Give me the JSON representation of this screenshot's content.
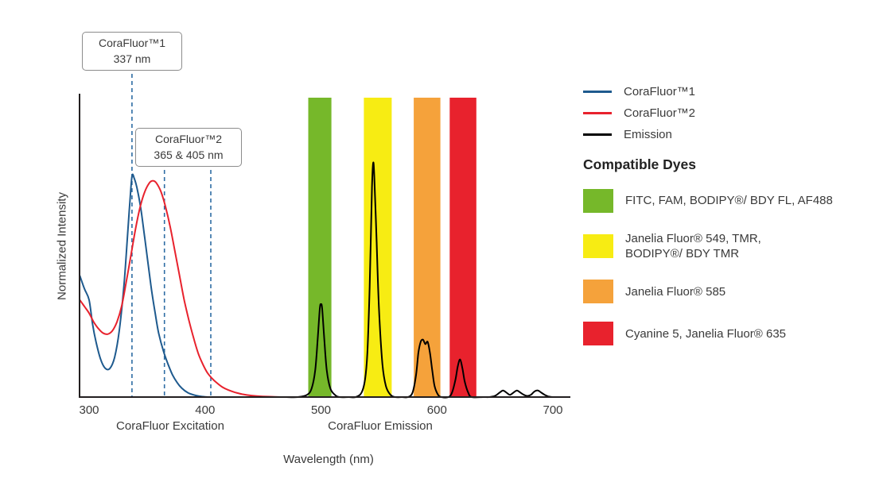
{
  "chart_data": {
    "type": "line",
    "xlabel": "Wavelength (nm)",
    "ylabel": "Normalized Intensity",
    "x_ticks": [
      300,
      400,
      500,
      600,
      700
    ],
    "xlim": [
      300,
      717
    ],
    "ylim": [
      0,
      1.15
    ],
    "axis_section_labels": [
      {
        "text": "CoraFluor Excitation",
        "center_nm": 370
      },
      {
        "text": "CoraFluor Emission",
        "center_nm": 551
      }
    ],
    "annotations": [
      {
        "text_line1": "CoraFluor™1",
        "text_line2": "337 nm",
        "wavelengths": [
          337
        ]
      },
      {
        "text_line1": "CoraFluor™2",
        "text_line2": "365 & 405 nm",
        "wavelengths": [
          365,
          405
        ]
      }
    ],
    "marker_line_color": "#2e6da4",
    "axis_color": "#231f20",
    "bands": [
      {
        "name": "green-filter-band",
        "color": "#76b82a",
        "from": 489,
        "to": 509
      },
      {
        "name": "yellow-filter-band",
        "color": "#f7ec13",
        "from": 537,
        "to": 561
      },
      {
        "name": "orange-filter-band",
        "color": "#f5a23b",
        "from": 580,
        "to": 603
      },
      {
        "name": "red-filter-band",
        "color": "#e8222d",
        "from": 611,
        "to": 634
      }
    ],
    "series": [
      {
        "name": "CoraFluor™1",
        "color": "#1e5a8e",
        "points": [
          [
            292,
            0.55
          ],
          [
            296,
            0.49
          ],
          [
            300,
            0.44
          ],
          [
            303,
            0.33
          ],
          [
            306,
            0.25
          ],
          [
            310,
            0.17
          ],
          [
            314,
            0.13
          ],
          [
            318,
            0.13
          ],
          [
            322,
            0.18
          ],
          [
            326,
            0.3
          ],
          [
            330,
            0.5
          ],
          [
            333,
            0.72
          ],
          [
            335,
            0.87
          ],
          [
            337,
            1.0
          ],
          [
            339,
            0.99
          ],
          [
            342,
            0.93
          ],
          [
            345,
            0.84
          ],
          [
            348,
            0.72
          ],
          [
            351,
            0.6
          ],
          [
            354,
            0.48
          ],
          [
            357,
            0.38
          ],
          [
            360,
            0.29
          ],
          [
            364,
            0.21
          ],
          [
            368,
            0.15
          ],
          [
            372,
            0.1
          ],
          [
            376,
            0.065
          ],
          [
            380,
            0.04
          ],
          [
            385,
            0.02
          ],
          [
            390,
            0.01
          ],
          [
            395,
            0.004
          ],
          [
            400,
            0.001
          ],
          [
            405,
            0
          ]
        ]
      },
      {
        "name": "CoraFluor™2",
        "color": "#e8222d",
        "points": [
          [
            292,
            0.44
          ],
          [
            296,
            0.41
          ],
          [
            300,
            0.38
          ],
          [
            304,
            0.34
          ],
          [
            308,
            0.31
          ],
          [
            312,
            0.29
          ],
          [
            316,
            0.285
          ],
          [
            320,
            0.3
          ],
          [
            324,
            0.34
          ],
          [
            328,
            0.41
          ],
          [
            332,
            0.52
          ],
          [
            336,
            0.64
          ],
          [
            340,
            0.76
          ],
          [
            344,
            0.86
          ],
          [
            348,
            0.93
          ],
          [
            352,
            0.97
          ],
          [
            355,
            0.98
          ],
          [
            358,
            0.97
          ],
          [
            362,
            0.93
          ],
          [
            366,
            0.86
          ],
          [
            370,
            0.77
          ],
          [
            374,
            0.66
          ],
          [
            378,
            0.55
          ],
          [
            382,
            0.44
          ],
          [
            386,
            0.35
          ],
          [
            390,
            0.27
          ],
          [
            394,
            0.2
          ],
          [
            398,
            0.15
          ],
          [
            402,
            0.11
          ],
          [
            406,
            0.085
          ],
          [
            410,
            0.065
          ],
          [
            415,
            0.045
          ],
          [
            420,
            0.032
          ],
          [
            426,
            0.021
          ],
          [
            432,
            0.013
          ],
          [
            440,
            0.007
          ],
          [
            450,
            0.003
          ],
          [
            460,
            0.001
          ],
          [
            470,
            0
          ]
        ]
      },
      {
        "name": "Emission",
        "color": "#000000",
        "points": [
          [
            470,
            0
          ],
          [
            480,
            0
          ],
          [
            488,
            0.01
          ],
          [
            492,
            0.04
          ],
          [
            495,
            0.12
          ],
          [
            497,
            0.25
          ],
          [
            499,
            0.4
          ],
          [
            500,
            0.42
          ],
          [
            501,
            0.4
          ],
          [
            503,
            0.25
          ],
          [
            505,
            0.12
          ],
          [
            508,
            0.04
          ],
          [
            512,
            0.01
          ],
          [
            516,
            0
          ],
          [
            524,
            0
          ],
          [
            530,
            0
          ],
          [
            535,
            0.02
          ],
          [
            538,
            0.08
          ],
          [
            540,
            0.2
          ],
          [
            542,
            0.5
          ],
          [
            544,
            0.95
          ],
          [
            545,
            1.06
          ],
          [
            546,
            1.0
          ],
          [
            548,
            0.7
          ],
          [
            550,
            0.4
          ],
          [
            553,
            0.15
          ],
          [
            556,
            0.05
          ],
          [
            560,
            0.01
          ],
          [
            564,
            0
          ],
          [
            570,
            0
          ],
          [
            575,
            0
          ],
          [
            579,
            0.02
          ],
          [
            582,
            0.1
          ],
          [
            584,
            0.2
          ],
          [
            586,
            0.25
          ],
          [
            588,
            0.26
          ],
          [
            590,
            0.24
          ],
          [
            592,
            0.25
          ],
          [
            594,
            0.2
          ],
          [
            596,
            0.12
          ],
          [
            598,
            0.05
          ],
          [
            601,
            0.01
          ],
          [
            604,
            0
          ],
          [
            610,
            0
          ],
          [
            613,
            0.02
          ],
          [
            616,
            0.08
          ],
          [
            618,
            0.14
          ],
          [
            620,
            0.17
          ],
          [
            622,
            0.13
          ],
          [
            624,
            0.07
          ],
          [
            627,
            0.02
          ],
          [
            630,
            0
          ],
          [
            640,
            0
          ],
          [
            645,
            0
          ],
          [
            650,
            0.005
          ],
          [
            654,
            0.02
          ],
          [
            657,
            0.03
          ],
          [
            660,
            0.02
          ],
          [
            663,
            0.01
          ],
          [
            666,
            0.02
          ],
          [
            669,
            0.03
          ],
          [
            672,
            0.02
          ],
          [
            675,
            0.01
          ],
          [
            678,
            0.005
          ],
          [
            681,
            0.01
          ],
          [
            684,
            0.025
          ],
          [
            687,
            0.03
          ],
          [
            690,
            0.02
          ],
          [
            693,
            0.01
          ],
          [
            696,
            0.003
          ],
          [
            700,
            0
          ]
        ]
      }
    ]
  },
  "legend": {
    "items": [
      {
        "label": "CoraFluor™1",
        "color": "#1e5a8e"
      },
      {
        "label": "CoraFluor™2",
        "color": "#e8222d"
      },
      {
        "label": "Emission",
        "color": "#000000"
      }
    ]
  },
  "dyes": {
    "title": "Compatible Dyes",
    "items": [
      {
        "color": "#76b82a",
        "lines": [
          "FITC, FAM, BODIPY®/ BDY FL, AF488"
        ]
      },
      {
        "color": "#f7ec13",
        "lines": [
          "Janelia Fluor® 549, TMR,",
          "BODIPY®/ BDY TMR"
        ]
      },
      {
        "color": "#f5a23b",
        "lines": [
          "Janelia Fluor® 585"
        ]
      },
      {
        "color": "#e8222d",
        "lines": [
          "Cyanine 5, Janelia Fluor® 635"
        ]
      }
    ]
  }
}
